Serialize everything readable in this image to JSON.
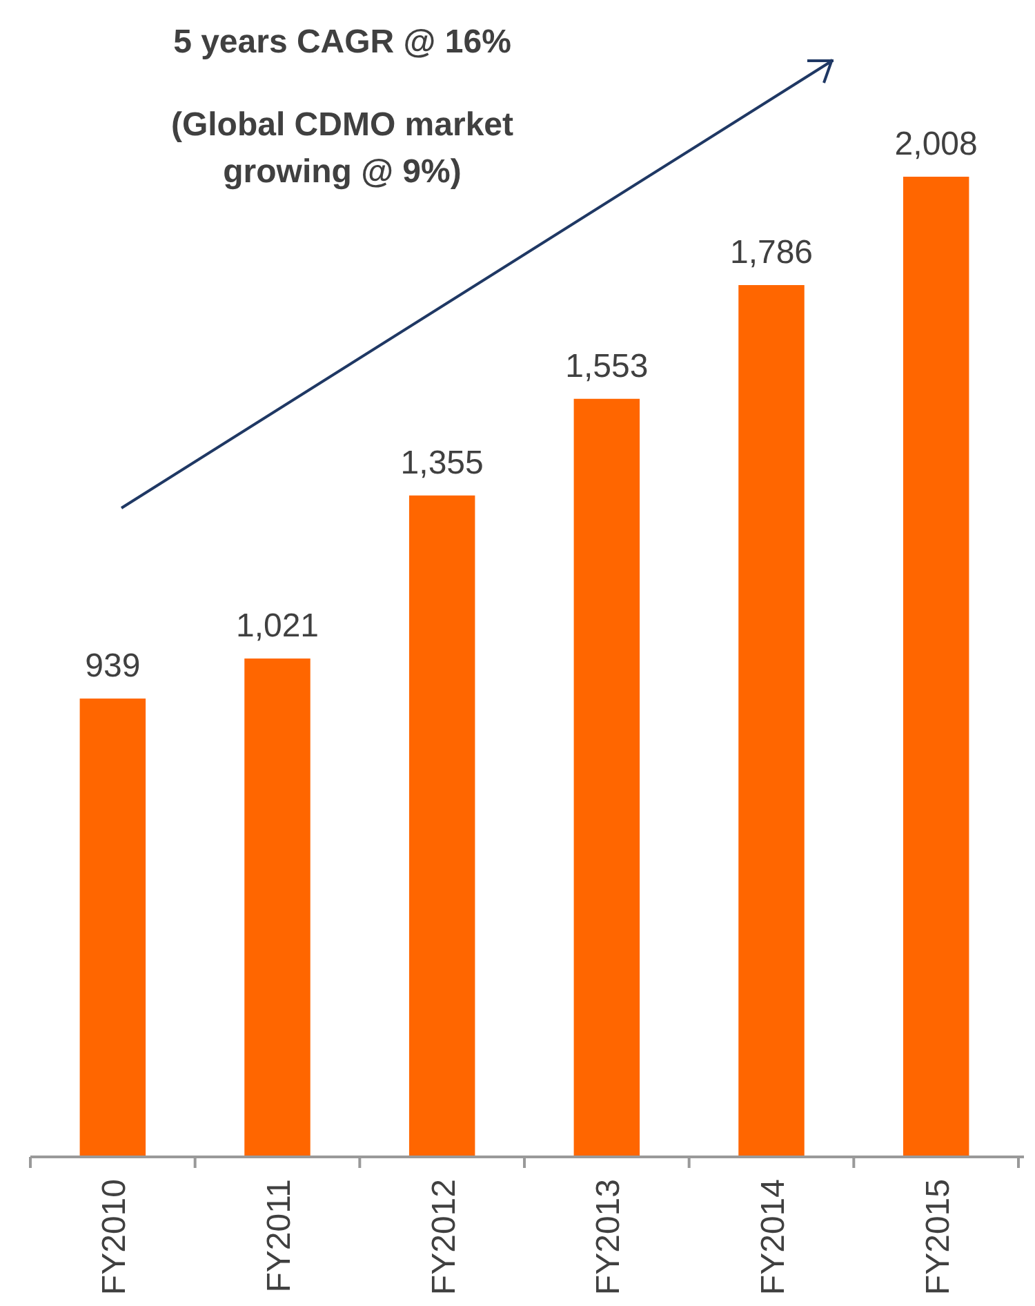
{
  "chart_data": {
    "type": "bar",
    "categories": [
      "FY2010",
      "FY2011",
      "FY2012",
      "FY2013",
      "FY2014",
      "FY2015"
    ],
    "values": [
      939,
      1021,
      1355,
      1553,
      1786,
      2008
    ],
    "color": "#ff6600",
    "value_labels": [
      "939",
      "1,021",
      "1,355",
      "1,553",
      "1,786",
      "2,008"
    ],
    "annotations": [
      "5 years CAGR @ 16%",
      "(Global CDMO market growing @ 9%)"
    ]
  }
}
